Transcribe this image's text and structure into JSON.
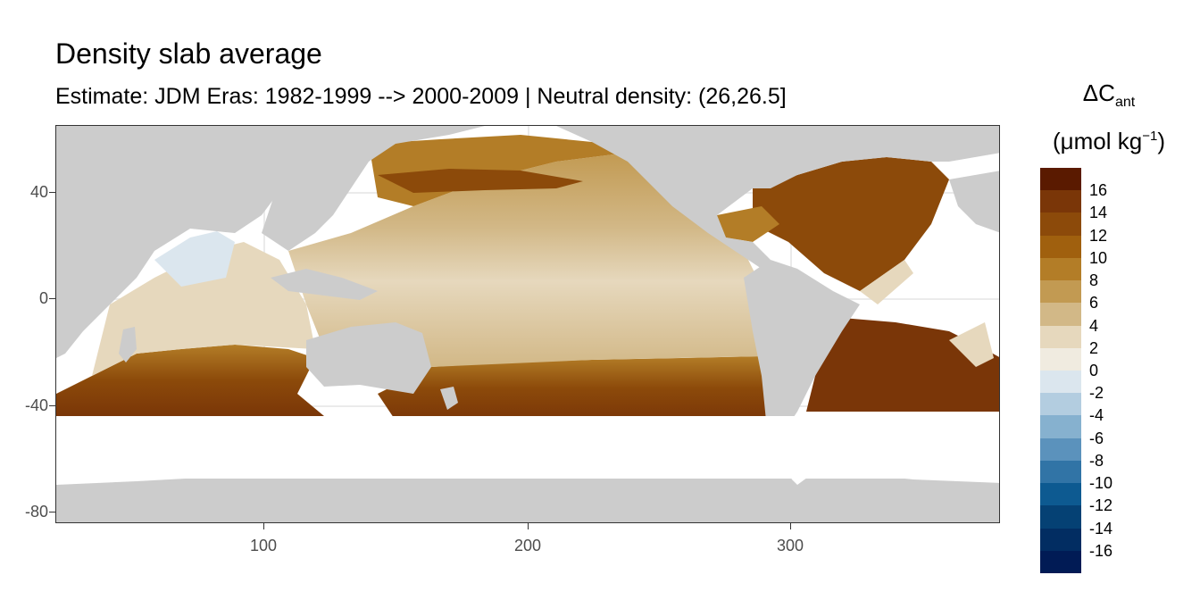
{
  "title": "Density slab average",
  "subtitle": "Estimate: JDM Eras: 1982-1999 --> 2000-2009 | Neutral density: (26,26.5]",
  "legend": {
    "title_line1_main": "ΔC",
    "title_line1_sub": "ant",
    "title_line2_pre": "(μmol kg",
    "title_line2_sup": "−1",
    "title_line2_post": ")",
    "labels": [
      "16",
      "14",
      "12",
      "10",
      "8",
      "6",
      "4",
      "2",
      "0",
      "-2",
      "-4",
      "-6",
      "-8",
      "-10",
      "-12",
      "-14",
      "-16"
    ],
    "colors": [
      "#5a1a00",
      "#7a3608",
      "#8c4a0a",
      "#a0600e",
      "#b37d27",
      "#c29a52",
      "#d2b887",
      "#e6d8bd",
      "#f0ebe0",
      "#dbe6ee",
      "#b3cde0",
      "#86b1cf",
      "#5b92bc",
      "#3174a6",
      "#0d5a91",
      "#054174",
      "#022d62",
      "#011b55"
    ]
  },
  "axes": {
    "y_ticks": [
      "40",
      "0",
      "-40",
      "-80"
    ],
    "x_ticks": [
      "100",
      "200",
      "300"
    ]
  },
  "colors": {
    "land": "#cccccc",
    "no_data": "#ffffff",
    "grid": "#ebebeb"
  },
  "chart_data": {
    "type": "heatmap",
    "title": "Density slab average",
    "subtitle": "Estimate: JDM Eras: 1982-1999 --> 2000-2009 | Neutral density: (26,26.5]",
    "x_range": [
      20,
      380
    ],
    "y_range": [
      -85,
      65
    ],
    "x_ticks": [
      100,
      200,
      300
    ],
    "y_ticks": [
      40,
      0,
      -40,
      -80
    ],
    "color_scale_range": [
      -16,
      16
    ],
    "color_breaks": [
      16,
      14,
      12,
      10,
      8,
      6,
      4,
      2,
      0,
      -2,
      -4,
      -6,
      -8,
      -10,
      -12,
      -14,
      -16
    ]
  }
}
